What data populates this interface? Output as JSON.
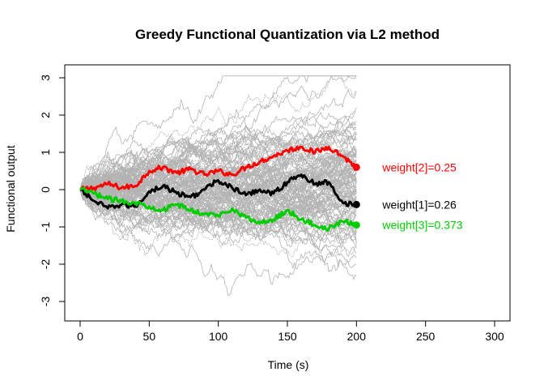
{
  "chart_data": {
    "type": "line",
    "title": "Greedy Functional Quantization via L2 method",
    "xlabel": "Time (s)",
    "ylabel": "Functional output",
    "xlim": [
      0,
      300
    ],
    "ylim": [
      -3,
      3
    ],
    "xticks": [
      0,
      50,
      100,
      150,
      200,
      250,
      300
    ],
    "yticks": [
      -3,
      -2,
      -1,
      0,
      1,
      2,
      3
    ],
    "grid": false,
    "background_paths": {
      "count": 120,
      "color": "#b3b3b3",
      "x_range": [
        0,
        200
      ],
      "start_value": 0
    },
    "series": [
      {
        "color": "#ff0000",
        "label": "weight[2]=0.25",
        "x": [
          0,
          10,
          20,
          30,
          40,
          50,
          60,
          70,
          80,
          90,
          100,
          110,
          120,
          130,
          140,
          150,
          160,
          170,
          180,
          190,
          200
        ],
        "y": [
          0,
          0.05,
          0.15,
          0.05,
          0.1,
          0.5,
          0.6,
          0.45,
          0.55,
          0.4,
          0.5,
          0.4,
          0.6,
          0.75,
          0.9,
          1.05,
          1.15,
          1.0,
          1.15,
          0.9,
          0.6
        ]
      },
      {
        "color": "#000000",
        "label": "weight[1]=0.26",
        "x": [
          0,
          10,
          20,
          30,
          40,
          50,
          60,
          70,
          80,
          90,
          100,
          110,
          120,
          130,
          140,
          150,
          160,
          170,
          180,
          190,
          200
        ],
        "y": [
          0,
          -0.3,
          -0.5,
          -0.4,
          -0.45,
          -0.05,
          0.1,
          -0.1,
          -0.2,
          0.0,
          0.25,
          0.05,
          -0.15,
          0.0,
          -0.1,
          0.2,
          0.4,
          0.15,
          0.2,
          -0.35,
          -0.4
        ]
      },
      {
        "color": "#00cc00",
        "label": "weight[3]=0.373",
        "x": [
          0,
          10,
          20,
          30,
          40,
          50,
          60,
          70,
          80,
          90,
          100,
          110,
          120,
          130,
          140,
          150,
          160,
          170,
          180,
          190,
          200
        ],
        "y": [
          0,
          -0.1,
          -0.25,
          -0.3,
          -0.35,
          -0.45,
          -0.55,
          -0.4,
          -0.55,
          -0.65,
          -0.7,
          -0.5,
          -0.75,
          -0.9,
          -0.8,
          -0.55,
          -0.8,
          -0.95,
          -1.05,
          -0.85,
          -0.95
        ]
      }
    ]
  }
}
